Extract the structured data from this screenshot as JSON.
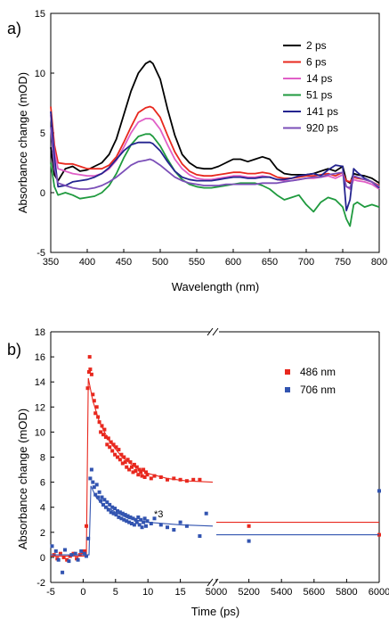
{
  "chart_data": [
    {
      "type": "line",
      "panel_label": "a)",
      "xlabel": "Wavelength (nm)",
      "ylabel": "Absorbance change (mOD)",
      "xlim": [
        350,
        800
      ],
      "ylim": [
        -5,
        15
      ],
      "x_ticks": [
        350,
        400,
        450,
        500,
        550,
        600,
        650,
        700,
        750,
        800
      ],
      "y_ticks": [
        -5,
        0,
        5,
        10,
        15
      ],
      "legend_position": "top-right",
      "x": [
        350,
        355,
        360,
        370,
        380,
        390,
        400,
        410,
        420,
        430,
        440,
        450,
        460,
        470,
        480,
        486,
        490,
        500,
        510,
        520,
        530,
        540,
        550,
        560,
        570,
        580,
        590,
        600,
        610,
        620,
        630,
        640,
        650,
        660,
        670,
        680,
        690,
        700,
        710,
        720,
        730,
        740,
        750,
        755,
        760,
        765,
        770,
        780,
        790,
        800
      ],
      "series": [
        {
          "name": "2 ps",
          "color": "#000000",
          "values": [
            3.8,
            1.5,
            1.0,
            2.0,
            2.2,
            1.8,
            1.9,
            2.2,
            2.5,
            3.2,
            4.5,
            6.5,
            8.5,
            10.0,
            10.8,
            11.0,
            10.8,
            9.5,
            7.0,
            4.8,
            3.2,
            2.5,
            2.1,
            2.0,
            2.0,
            2.2,
            2.5,
            2.8,
            2.8,
            2.6,
            2.8,
            3.0,
            2.8,
            2.0,
            1.6,
            1.5,
            1.5,
            1.5,
            1.6,
            1.8,
            2.0,
            1.8,
            2.2,
            1.0,
            0.8,
            1.6,
            1.5,
            1.4,
            1.2,
            0.8
          ]
        },
        {
          "name": "6 ps",
          "color": "#e8281e",
          "values": [
            7.2,
            4.0,
            2.5,
            2.4,
            2.4,
            2.2,
            2.0,
            2.0,
            2.0,
            2.3,
            3.0,
            4.2,
            5.5,
            6.7,
            7.1,
            7.2,
            7.1,
            6.3,
            4.8,
            3.4,
            2.4,
            1.8,
            1.5,
            1.4,
            1.4,
            1.5,
            1.6,
            1.7,
            1.7,
            1.6,
            1.6,
            1.7,
            1.6,
            1.3,
            1.2,
            1.2,
            1.3,
            1.4,
            1.4,
            1.5,
            1.6,
            1.4,
            1.7,
            1.0,
            0.9,
            1.3,
            1.2,
            1.1,
            0.9,
            0.6
          ]
        },
        {
          "name": "14 ps",
          "color": "#e05fc7",
          "values": [
            6.5,
            3.5,
            2.0,
            1.8,
            1.6,
            1.5,
            1.4,
            1.4,
            1.6,
            2.0,
            2.7,
            3.8,
            5.0,
            5.9,
            6.2,
            6.2,
            6.1,
            5.3,
            4.0,
            2.8,
            2.0,
            1.5,
            1.2,
            1.1,
            1.1,
            1.2,
            1.3,
            1.4,
            1.4,
            1.3,
            1.3,
            1.4,
            1.3,
            1.1,
            1.0,
            1.0,
            1.1,
            1.2,
            1.2,
            1.3,
            1.4,
            1.2,
            1.5,
            0.5,
            0.3,
            1.1,
            1.0,
            0.9,
            0.7,
            0.3
          ]
        },
        {
          "name": "51 ps",
          "color": "#1f9a3e",
          "values": [
            2.5,
            0.5,
            -0.2,
            0.0,
            -0.2,
            -0.5,
            -0.4,
            -0.3,
            0.0,
            0.6,
            1.6,
            2.9,
            4.0,
            4.7,
            4.9,
            4.9,
            4.7,
            3.9,
            2.8,
            1.8,
            1.1,
            0.7,
            0.5,
            0.4,
            0.4,
            0.5,
            0.6,
            0.7,
            0.8,
            0.8,
            0.8,
            0.6,
            0.3,
            -0.2,
            -0.6,
            -0.4,
            -0.2,
            -1.0,
            -1.6,
            -0.8,
            -0.4,
            -0.6,
            -1.2,
            -2.2,
            -2.8,
            -1.0,
            -0.8,
            -1.2,
            -1.0,
            -1.2
          ]
        },
        {
          "name": "141 ps",
          "color": "#24248f",
          "values": [
            6.8,
            3.0,
            0.5,
            0.6,
            0.9,
            1.0,
            1.1,
            1.3,
            1.6,
            2.1,
            2.8,
            3.5,
            4.0,
            4.2,
            4.2,
            4.2,
            4.1,
            3.5,
            2.6,
            1.8,
            1.3,
            1.1,
            1.0,
            1.0,
            1.0,
            1.1,
            1.2,
            1.3,
            1.3,
            1.2,
            1.2,
            1.3,
            1.3,
            1.1,
            1.1,
            1.2,
            1.4,
            1.5,
            1.6,
            1.4,
            1.9,
            2.3,
            2.2,
            -1.5,
            -0.6,
            2.0,
            1.7,
            1.2,
            0.9,
            0.4
          ]
        },
        {
          "name": "920 ps",
          "color": "#7b4fb8",
          "values": [
            5.5,
            2.0,
            0.8,
            0.6,
            0.4,
            0.3,
            0.3,
            0.4,
            0.6,
            0.9,
            1.3,
            1.8,
            2.3,
            2.6,
            2.7,
            2.8,
            2.7,
            2.3,
            1.8,
            1.3,
            1.0,
            0.8,
            0.7,
            0.6,
            0.6,
            0.6,
            0.7,
            0.7,
            0.7,
            0.7,
            0.7,
            0.8,
            0.8,
            0.8,
            0.9,
            1.0,
            1.1,
            1.2,
            1.3,
            1.3,
            1.5,
            1.6,
            1.7,
            0.5,
            0.4,
            1.4,
            1.3,
            1.1,
            0.9,
            0.5
          ]
        }
      ]
    },
    {
      "type": "scatter",
      "panel_label": "b)",
      "xlabel": "Time (ps)",
      "ylabel": "Absorbance change (mOD)",
      "ylim": [
        -2,
        18
      ],
      "y_ticks": [
        -2,
        0,
        2,
        4,
        6,
        8,
        10,
        12,
        14,
        16,
        18
      ],
      "x_axis_break": true,
      "x_segments": [
        {
          "xlim": [
            -5,
            20
          ],
          "ticks": [
            -5,
            0,
            5,
            10,
            15
          ]
        },
        {
          "xlim": [
            5000,
            6000
          ],
          "ticks": [
            5000,
            5200,
            5400,
            5600,
            5800,
            6000
          ]
        }
      ],
      "legend_position": "top-right",
      "annotation": "*3",
      "series": [
        {
          "name": "486 nm",
          "color": "#e8281e",
          "marker": "square",
          "points": [
            [
              -4.5,
              0.2
            ],
            [
              -4,
              -0.1
            ],
            [
              -3.5,
              0.3
            ],
            [
              -3,
              0.0
            ],
            [
              -2.5,
              -0.2
            ],
            [
              -2,
              0.1
            ],
            [
              -1.5,
              0.3
            ],
            [
              -1,
              -0.1
            ],
            [
              -0.5,
              0.2
            ],
            [
              0,
              0.4
            ],
            [
              0.2,
              0.5
            ],
            [
              0.5,
              2.5
            ],
            [
              0.7,
              13.5
            ],
            [
              0.9,
              14.8
            ],
            [
              1.0,
              16.0
            ],
            [
              1.1,
              15.0
            ],
            [
              1.3,
              14.6
            ],
            [
              1.5,
              13.0
            ],
            [
              1.7,
              12.5
            ],
            [
              1.9,
              11.5
            ],
            [
              2.1,
              12.0
            ],
            [
              2.3,
              11.2
            ],
            [
              2.5,
              10.8
            ],
            [
              2.7,
              10.0
            ],
            [
              2.9,
              10.5
            ],
            [
              3.1,
              9.8
            ],
            [
              3.3,
              10.2
            ],
            [
              3.5,
              9.6
            ],
            [
              3.7,
              9.0
            ],
            [
              3.9,
              9.5
            ],
            [
              4.1,
              8.8
            ],
            [
              4.3,
              9.2
            ],
            [
              4.5,
              8.5
            ],
            [
              4.7,
              9.0
            ],
            [
              4.9,
              8.2
            ],
            [
              5.1,
              8.8
            ],
            [
              5.3,
              8.0
            ],
            [
              5.5,
              8.6
            ],
            [
              5.7,
              7.8
            ],
            [
              5.9,
              8.2
            ],
            [
              6.1,
              7.5
            ],
            [
              6.3,
              8.0
            ],
            [
              6.5,
              7.6
            ],
            [
              6.7,
              7.2
            ],
            [
              6.9,
              7.8
            ],
            [
              7.1,
              7.0
            ],
            [
              7.3,
              7.6
            ],
            [
              7.5,
              7.2
            ],
            [
              7.7,
              6.8
            ],
            [
              7.9,
              7.4
            ],
            [
              8.1,
              6.9
            ],
            [
              8.3,
              7.2
            ],
            [
              8.5,
              6.6
            ],
            [
              8.7,
              7.0
            ],
            [
              8.9,
              6.8
            ],
            [
              9.1,
              6.5
            ],
            [
              9.3,
              7.0
            ],
            [
              9.5,
              6.4
            ],
            [
              9.7,
              6.8
            ],
            [
              9.9,
              6.6
            ],
            [
              10.5,
              6.3
            ],
            [
              11,
              6.5
            ],
            [
              12,
              6.4
            ],
            [
              13,
              6.2
            ],
            [
              14,
              6.3
            ],
            [
              15,
              6.2
            ],
            [
              16,
              6.1
            ],
            [
              17,
              6.2
            ],
            [
              18,
              6.2
            ],
            [
              5200,
              2.5
            ],
            [
              6000,
              1.8
            ]
          ],
          "fit": [
            [
              -5,
              0.1
            ],
            [
              0.5,
              0.1
            ],
            [
              0.8,
              14.3
            ],
            [
              1.5,
              12.5
            ],
            [
              2.5,
              10.8
            ],
            [
              4,
              9.3
            ],
            [
              6,
              8.0
            ],
            [
              8,
              7.2
            ],
            [
              10,
              6.7
            ],
            [
              13,
              6.3
            ],
            [
              16,
              6.1
            ],
            [
              20,
              6.0
            ],
            [
              5000,
              2.8
            ],
            [
              6000,
              2.8
            ]
          ]
        },
        {
          "name": "706 nm",
          "color": "#3254b0",
          "marker": "square",
          "points": [
            [
              -4.8,
              0.9
            ],
            [
              -4.2,
              0.5
            ],
            [
              -3.8,
              -0.2
            ],
            [
              -3.2,
              -1.2
            ],
            [
              -2.8,
              0.6
            ],
            [
              -2.2,
              -0.3
            ],
            [
              -1.8,
              0.2
            ],
            [
              -1.2,
              0.3
            ],
            [
              -0.8,
              -0.2
            ],
            [
              -0.3,
              0.5
            ],
            [
              0.2,
              0.3
            ],
            [
              0.5,
              0.1
            ],
            [
              0.8,
              1.5
            ],
            [
              1.1,
              6.3
            ],
            [
              1.3,
              7.0
            ],
            [
              1.5,
              6.0
            ],
            [
              1.7,
              5.6
            ],
            [
              1.9,
              5.0
            ],
            [
              2.1,
              5.8
            ],
            [
              2.3,
              4.8
            ],
            [
              2.5,
              5.2
            ],
            [
              2.7,
              4.5
            ],
            [
              2.9,
              4.8
            ],
            [
              3.1,
              4.2
            ],
            [
              3.3,
              4.6
            ],
            [
              3.5,
              4.0
            ],
            [
              3.7,
              4.4
            ],
            [
              3.9,
              3.8
            ],
            [
              4.1,
              4.2
            ],
            [
              4.3,
              3.6
            ],
            [
              4.5,
              4.0
            ],
            [
              4.7,
              3.5
            ],
            [
              4.9,
              3.9
            ],
            [
              5.1,
              3.4
            ],
            [
              5.3,
              3.7
            ],
            [
              5.5,
              3.2
            ],
            [
              5.7,
              3.6
            ],
            [
              5.9,
              3.1
            ],
            [
              6.1,
              3.5
            ],
            [
              6.3,
              3.0
            ],
            [
              6.5,
              3.4
            ],
            [
              6.7,
              2.9
            ],
            [
              6.9,
              3.3
            ],
            [
              7.1,
              2.8
            ],
            [
              7.3,
              3.2
            ],
            [
              7.5,
              2.7
            ],
            [
              7.7,
              3.1
            ],
            [
              7.9,
              2.6
            ],
            [
              8.1,
              3.0
            ],
            [
              8.3,
              2.8
            ],
            [
              8.5,
              3.2
            ],
            [
              8.7,
              2.6
            ],
            [
              8.9,
              3.0
            ],
            [
              9.1,
              2.4
            ],
            [
              9.3,
              2.8
            ],
            [
              9.5,
              3.1
            ],
            [
              9.7,
              2.5
            ],
            [
              9.9,
              2.9
            ],
            [
              10.5,
              2.7
            ],
            [
              11,
              3.1
            ],
            [
              12,
              2.6
            ],
            [
              13,
              2.4
            ],
            [
              14,
              2.2
            ],
            [
              15,
              2.8
            ],
            [
              16,
              2.5
            ],
            [
              18,
              1.7
            ],
            [
              19,
              3.5
            ],
            [
              5200,
              1.3
            ],
            [
              6000,
              5.3
            ]
          ],
          "fit": [
            [
              -5,
              0.2
            ],
            [
              0.9,
              0.2
            ],
            [
              1.2,
              5.7
            ],
            [
              2,
              4.8
            ],
            [
              3,
              4.2
            ],
            [
              5,
              3.6
            ],
            [
              7,
              3.1
            ],
            [
              10,
              2.8
            ],
            [
              15,
              2.6
            ],
            [
              20,
              2.5
            ],
            [
              5000,
              1.8
            ],
            [
              6000,
              1.8
            ]
          ]
        }
      ]
    }
  ]
}
